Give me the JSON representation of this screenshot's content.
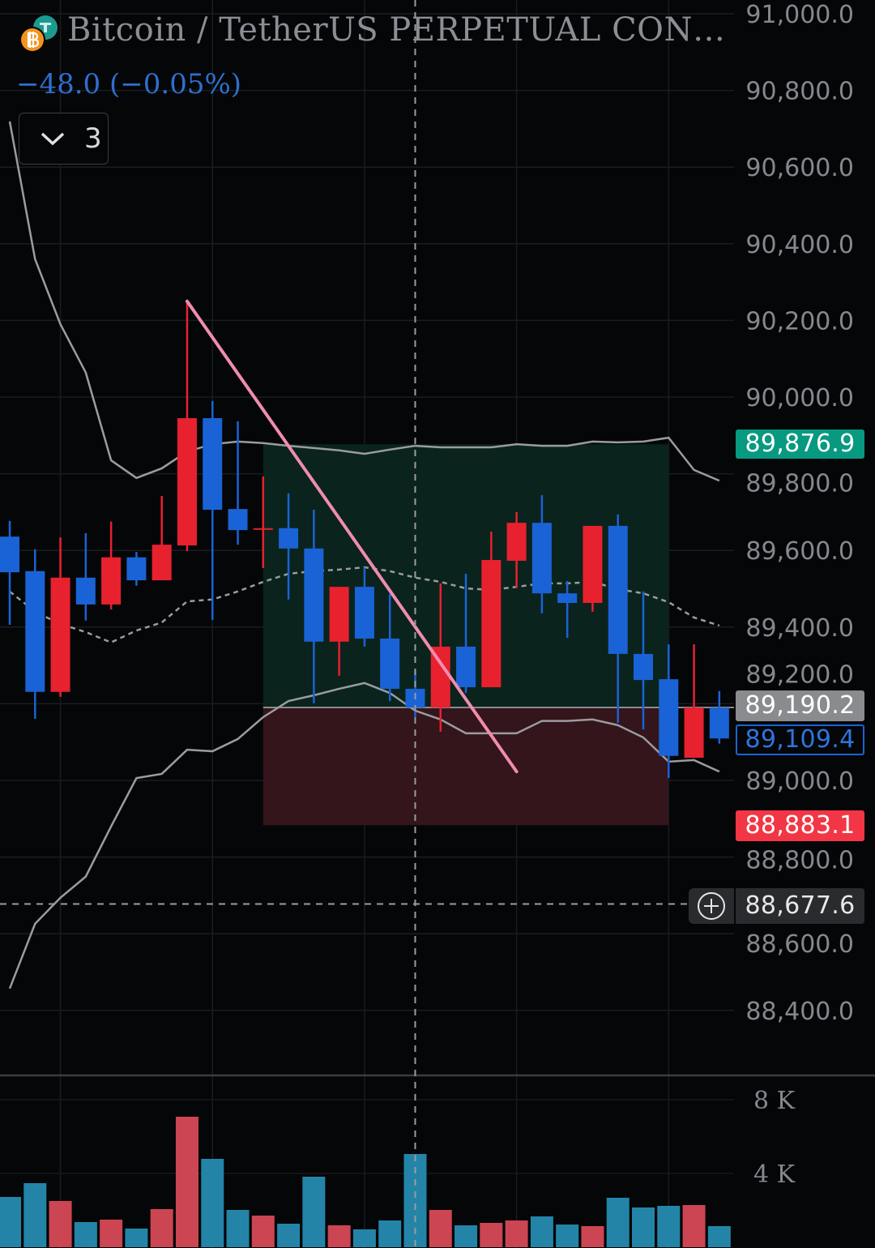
{
  "header": {
    "title": "Bitcoin / TetherUS PERPETUAL CON…",
    "change": "−48.0 (−0.05%)",
    "indicator_count": "3",
    "base_icon": "bitcoin-icon",
    "quote_icon": "tether-icon"
  },
  "colors": {
    "up": "#e8212f",
    "down": "#1a63d6",
    "volume_up": "#cc4552",
    "volume_down": "#2384a8",
    "take_profit": "#089981",
    "stop_loss": "#f23645",
    "trendline": "#f08cb0",
    "bands": "#9a9ca0"
  },
  "price_labels": {
    "take_profit": "89,876.9",
    "entry": "89,190.2",
    "last": "89,109.4",
    "stop_loss": "88,883.1",
    "crosshair": "88,677.6"
  },
  "chart_data": {
    "type": "candlestick",
    "title": "",
    "y_axis": {
      "range": [
        88230,
        91000
      ],
      "ticks": [
        91000,
        90800,
        90600,
        90400,
        90200,
        90000,
        89800,
        89600,
        89400,
        89200,
        89000,
        88800,
        88600,
        88400
      ],
      "tick_labels": [
        "91,000.0",
        "90,800.0",
        "90,600.0",
        "90,400.0",
        "90,200.0",
        "90,000.0",
        "89,800.0",
        "89,600.0",
        "89,400.0",
        "89,200.0",
        "89,000.0",
        "88,800.0",
        "88,600.0",
        "88,400.0"
      ],
      "position": "right"
    },
    "grid": true,
    "candles": [
      {
        "o": 89636,
        "h": 89677,
        "l": 89406,
        "c": 89543
      },
      {
        "o": 89546,
        "h": 89603,
        "l": 89161,
        "c": 89231
      },
      {
        "o": 89231,
        "h": 89634,
        "l": 89218,
        "c": 89529
      },
      {
        "o": 89529,
        "h": 89645,
        "l": 89417,
        "c": 89459
      },
      {
        "o": 89459,
        "h": 89675,
        "l": 89446,
        "c": 89582
      },
      {
        "o": 89582,
        "h": 89596,
        "l": 89508,
        "c": 89522
      },
      {
        "o": 89522,
        "h": 89742,
        "l": 89522,
        "c": 89615
      },
      {
        "o": 89613,
        "h": 90250,
        "l": 89598,
        "c": 89945
      },
      {
        "o": 89945,
        "h": 89990,
        "l": 89419,
        "c": 89706
      },
      {
        "o": 89708,
        "h": 89937,
        "l": 89615,
        "c": 89653
      },
      {
        "o": 89658,
        "h": 89793,
        "l": 89554,
        "c": 89658
      },
      {
        "o": 89658,
        "h": 89749,
        "l": 89472,
        "c": 89605
      },
      {
        "o": 89605,
        "h": 89706,
        "l": 89201,
        "c": 89362
      },
      {
        "o": 89362,
        "h": 89505,
        "l": 89273,
        "c": 89505
      },
      {
        "o": 89505,
        "h": 89556,
        "l": 89349,
        "c": 89370
      },
      {
        "o": 89370,
        "h": 89486,
        "l": 89207,
        "c": 89239
      },
      {
        "o": 89239,
        "h": 89286,
        "l": 89165,
        "c": 89190
      },
      {
        "o": 89190,
        "h": 89514,
        "l": 89127,
        "c": 89349
      },
      {
        "o": 89349,
        "h": 89539,
        "l": 89228,
        "c": 89243
      },
      {
        "o": 89243,
        "h": 89649,
        "l": 89243,
        "c": 89575
      },
      {
        "o": 89573,
        "h": 89700,
        "l": 89503,
        "c": 89672
      },
      {
        "o": 89672,
        "h": 89744,
        "l": 89436,
        "c": 89488
      },
      {
        "o": 89488,
        "h": 89520,
        "l": 89372,
        "c": 89463
      },
      {
        "o": 89463,
        "h": 89662,
        "l": 89440,
        "c": 89664
      },
      {
        "o": 89664,
        "h": 89694,
        "l": 89150,
        "c": 89330
      },
      {
        "o": 89330,
        "h": 89493,
        "l": 89133,
        "c": 89262
      },
      {
        "o": 89264,
        "h": 89355,
        "l": 89006,
        "c": 89064
      },
      {
        "o": 89059,
        "h": 89355,
        "l": 89059,
        "c": 89190
      },
      {
        "o": 89190,
        "h": 89233,
        "l": 89096,
        "c": 89109.4
      }
    ],
    "bollinger": {
      "upper": [
        90719,
        90360,
        90190,
        90064,
        89835,
        89789,
        89814,
        89858,
        89877,
        89884,
        89880,
        89873,
        89867,
        89861,
        89852,
        89863,
        89873,
        89869,
        89869,
        89869,
        89877,
        89873,
        89873,
        89884,
        89882,
        89884,
        89894,
        89810,
        89782
      ],
      "middle": [
        89493,
        89440,
        89408,
        89387,
        89360,
        89391,
        89412,
        89467,
        89472,
        89493,
        89518,
        89539,
        89546,
        89550,
        89556,
        89546,
        89529,
        89518,
        89501,
        89497,
        89505,
        89514,
        89514,
        89518,
        89499,
        89488,
        89465,
        89425,
        89404
      ],
      "lower": [
        88457,
        88626,
        88694,
        88749,
        88880,
        89006,
        89017,
        89080,
        89076,
        89108,
        89165,
        89207,
        89222,
        89239,
        89254,
        89228,
        89182,
        89159,
        89123,
        89123,
        89123,
        89155,
        89155,
        89159,
        89144,
        89112,
        89049,
        89053,
        89023
      ]
    },
    "trendline": {
      "from": {
        "index": 7,
        "price": 90250
      },
      "to": {
        "index": 20,
        "price": 89023
      }
    },
    "long_position": {
      "start_index": 10,
      "end_index": 26,
      "entry": 89190.2,
      "take_profit": 89876.9,
      "stop_loss": 88883.1
    },
    "crosshair": {
      "index": 16,
      "price": 88677.6
    },
    "volume": {
      "values": [
        2725,
        3473,
        2506,
        1363,
        1495,
        1011,
        2066,
        7077,
        4792,
        2022,
        1714,
        1275,
        3824,
        1187,
        967,
        1451,
        5055,
        2022,
        1187,
        1319,
        1451,
        1670,
        1231,
        1143,
        2681,
        2154,
        2242,
        2286,
        1143
      ],
      "ticks": [
        8000,
        4000
      ],
      "tick_labels": [
        "8 K",
        "4 K"
      ]
    }
  }
}
